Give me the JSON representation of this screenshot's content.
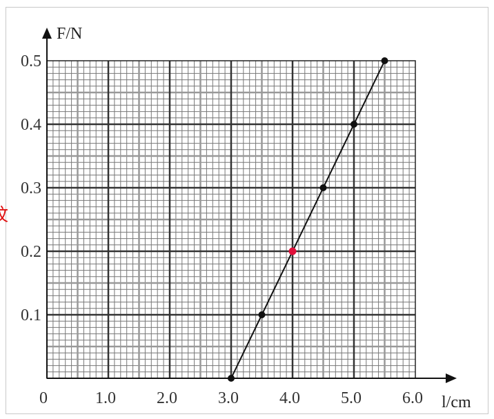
{
  "chart_data": {
    "type": "line",
    "xlabel": "l/cm",
    "ylabel": "F/N",
    "origin_label": "0",
    "xlim": [
      0,
      6.0
    ],
    "ylim": [
      0,
      0.5
    ],
    "x_ticks": [
      "1.0",
      "2.0",
      "3.0",
      "4.0",
      "5.0",
      "6.0"
    ],
    "x_tick_values": [
      1.0,
      2.0,
      3.0,
      4.0,
      5.0,
      6.0
    ],
    "y_ticks": [
      "0.1",
      "0.2",
      "0.3",
      "0.4",
      "0.5"
    ],
    "y_tick_values": [
      0.1,
      0.2,
      0.3,
      0.4,
      0.5
    ],
    "grid": true,
    "series": [
      {
        "points": [
          {
            "x": 3.0,
            "y": 0.0
          },
          {
            "x": 3.5,
            "y": 0.1
          },
          {
            "x": 4.0,
            "y": 0.2
          },
          {
            "x": 4.5,
            "y": 0.3
          },
          {
            "x": 5.0,
            "y": 0.4
          },
          {
            "x": 5.5,
            "y": 0.5
          }
        ],
        "fit_line": {
          "from": [
            3.0,
            0.0
          ],
          "to": [
            5.5,
            0.5
          ]
        },
        "color": "#111111",
        "highlight_index": 2,
        "highlight_color": "#e0103a"
      }
    ]
  },
  "side_mark": "纹"
}
